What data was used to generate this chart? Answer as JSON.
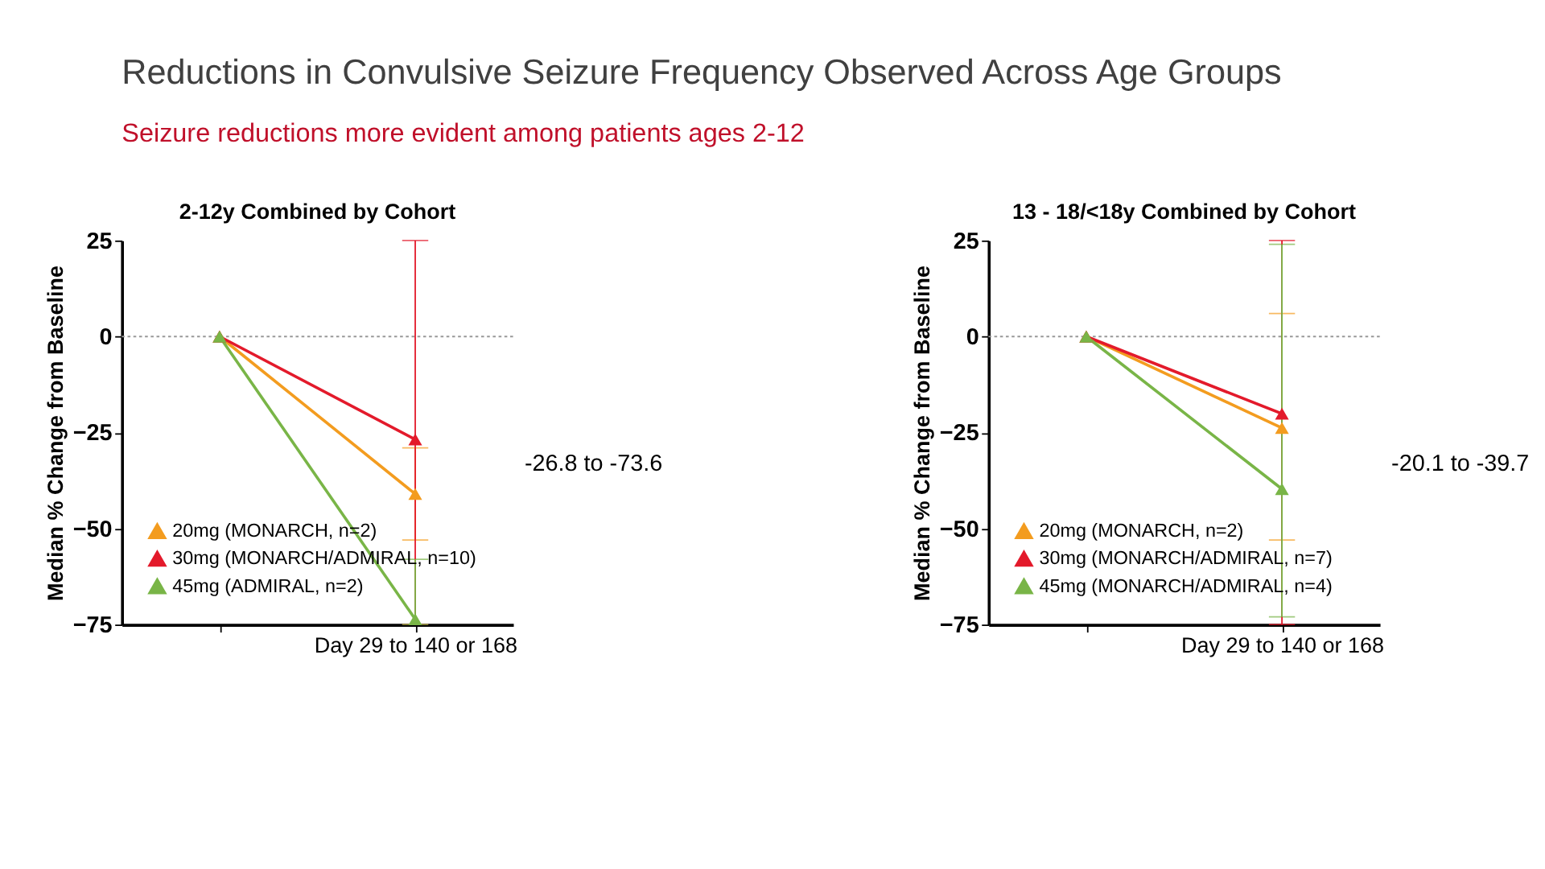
{
  "chart_data": [
    {
      "type": "other",
      "title": "Reductions in Convulsive Seizure Frequency Observed Across Age Groups",
      "subtitle": "Seizure reductions more evident among patients ages 2-12"
    },
    {
      "type": "line",
      "title": "2-12y Combined by Cohort",
      "ylabel": "Median % Change from Baseline",
      "categories": [
        null,
        "Day 29 to 140 or 168"
      ],
      "ylim": [
        -75,
        25
      ],
      "yticks": [
        -75,
        -50,
        -25,
        0,
        25
      ],
      "grid": false,
      "legend": "bottom left",
      "marker": "triangle",
      "line_style": "solid",
      "annotations": [
        "-26.8 to -73.6"
      ],
      "ref_lines": [
        {
          "axis": "y",
          "value": 0,
          "color": "#999999",
          "line_style": "dotted"
        }
      ],
      "series": [
        {
          "name": "20mg (MONARCH, n=2)",
          "color": "#f39c1f",
          "values": [
            0,
            -41
          ],
          "errors": [
            null,
            [
              -53,
              -29
            ]
          ]
        },
        {
          "name": "30mg (MONARCH/ADMIRAL, n=10)",
          "color": "#e31a2b",
          "values": [
            0,
            -26.8
          ],
          "errors": [
            null,
            [
              -75,
              25
            ]
          ]
        },
        {
          "name": "45mg (ADMIRAL, n=2)",
          "color": "#79b547",
          "values": [
            0,
            -73.6
          ],
          "errors": [
            null,
            [
              -75,
              -58
            ]
          ]
        }
      ]
    },
    {
      "type": "line",
      "title": "13 - 18/<18y Combined by Cohort",
      "ylabel": "Median % Change from Baseline",
      "categories": [
        null,
        "Day 29 to 140 or 168"
      ],
      "ylim": [
        -75,
        25
      ],
      "yticks": [
        -75,
        -50,
        -25,
        0,
        25
      ],
      "grid": false,
      "legend": "bottom left",
      "marker": "triangle",
      "line_style": "solid",
      "annotations": [
        "-20.1 to -39.7"
      ],
      "ref_lines": [
        {
          "axis": "y",
          "value": 0,
          "color": "#999999",
          "line_style": "dotted"
        }
      ],
      "series": [
        {
          "name": "20mg (MONARCH, n=2)",
          "color": "#f39c1f",
          "values": [
            0,
            -23.8
          ],
          "errors": [
            null,
            [
              -53,
              6
            ]
          ]
        },
        {
          "name": "30mg (MONARCH/ADMIRAL, n=7)",
          "color": "#e31a2b",
          "values": [
            0,
            -20.1
          ],
          "errors": [
            null,
            [
              -75,
              25
            ]
          ]
        },
        {
          "name": "45mg (MONARCH/ADMIRAL, n=4)",
          "color": "#79b547",
          "values": [
            0,
            -39.7
          ],
          "errors": [
            null,
            [
              -73,
              24
            ]
          ]
        }
      ]
    }
  ]
}
